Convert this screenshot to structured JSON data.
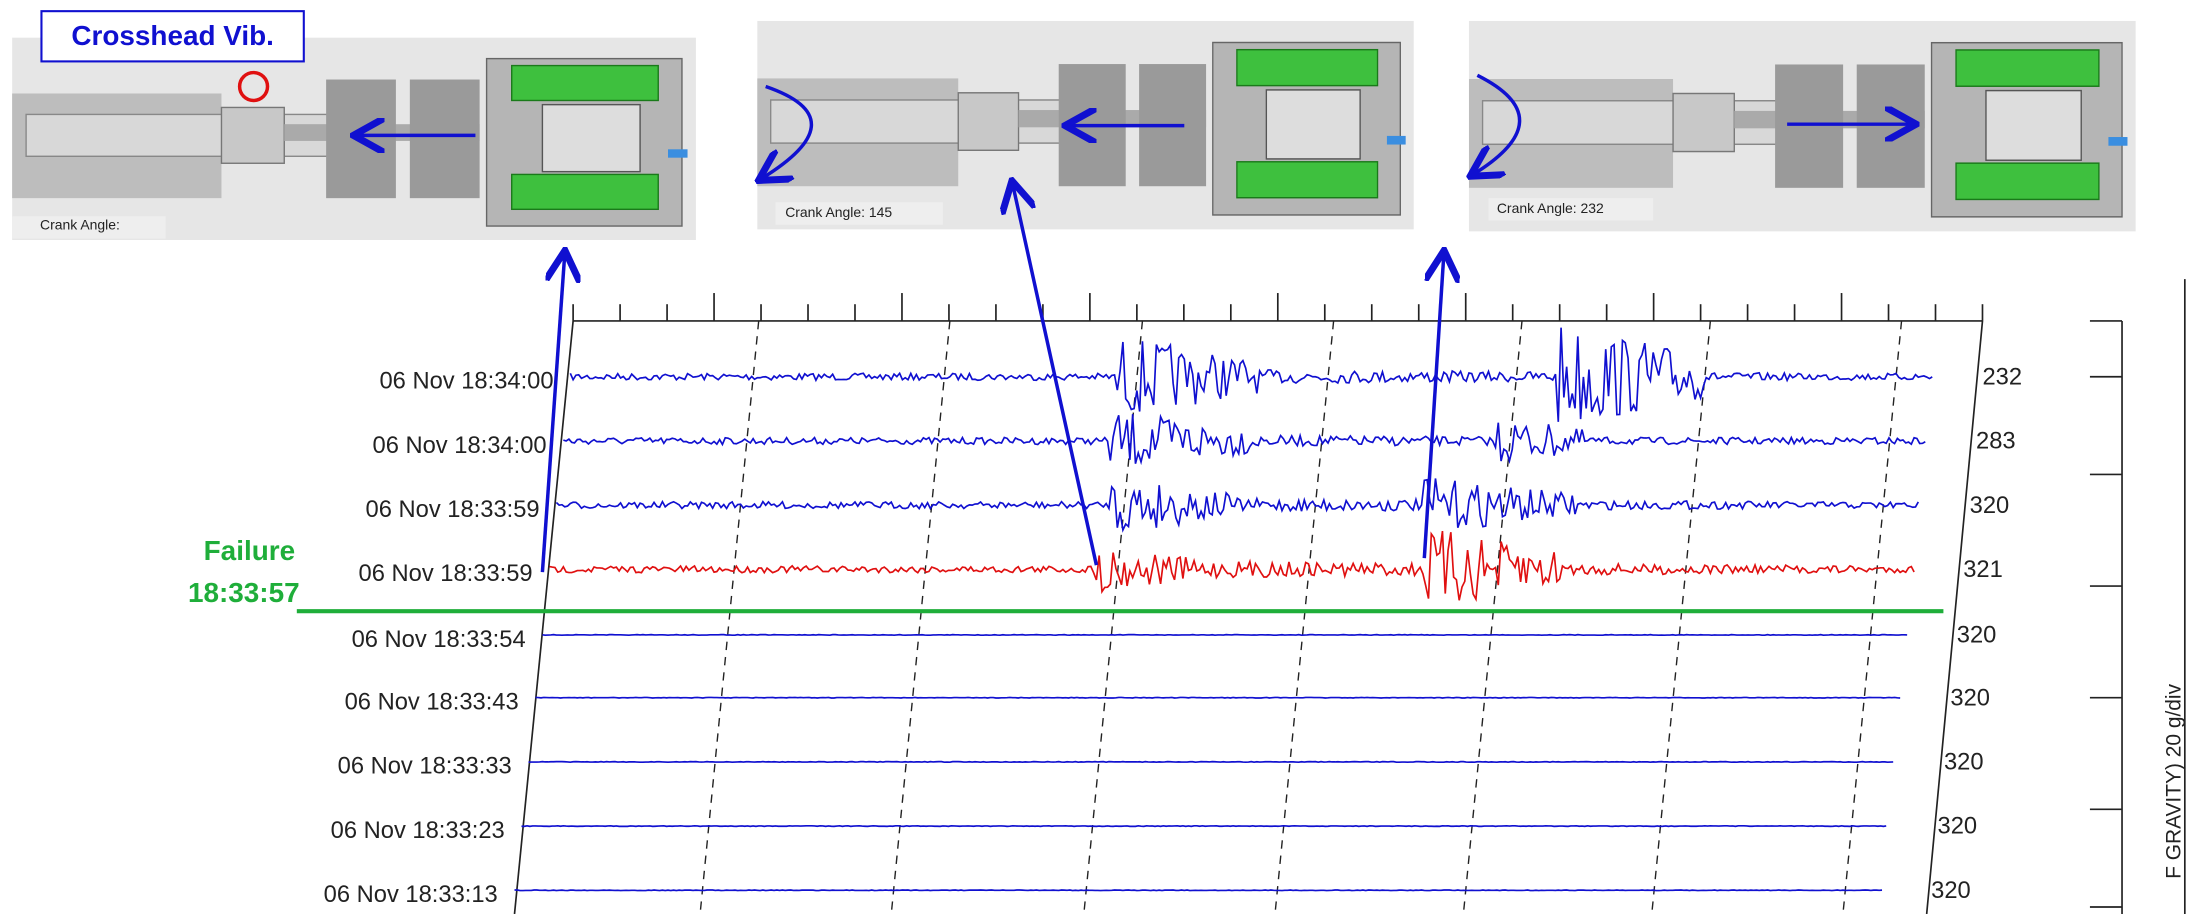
{
  "callout": "Crosshead Vib.",
  "snapshots": [
    {
      "label": "Crank Angle:"
    },
    {
      "label": "Crank Angle: 145"
    },
    {
      "label": "Crank Angle: 232"
    }
  ],
  "failure": {
    "label": "Failure",
    "time": "18:33:57"
  },
  "traces": [
    {
      "time": "06 Nov 18:34:00",
      "value": 232,
      "color": "#1010d0"
    },
    {
      "time": "06 Nov 18:34:00",
      "value": 283,
      "color": "#1010d0"
    },
    {
      "time": "06 Nov 18:33:59",
      "value": 320,
      "color": "#1010d0"
    },
    {
      "time": "06 Nov 18:33:59",
      "value": 321,
      "color": "#e01010"
    },
    {
      "time": "06 Nov 18:33:54",
      "value": 320,
      "color": "#1010d0"
    },
    {
      "time": "06 Nov 18:33:43",
      "value": 320,
      "color": "#1010d0"
    },
    {
      "time": "06 Nov 18:33:33",
      "value": 320,
      "color": "#1010d0"
    },
    {
      "time": "06 Nov 18:33:23",
      "value": 320,
      "color": "#1010d0"
    },
    {
      "time": "06 Nov 18:33:13",
      "value": 320,
      "color": "#1010d0"
    }
  ],
  "axis_label": "F GRAVITY) 20 g/div"
}
